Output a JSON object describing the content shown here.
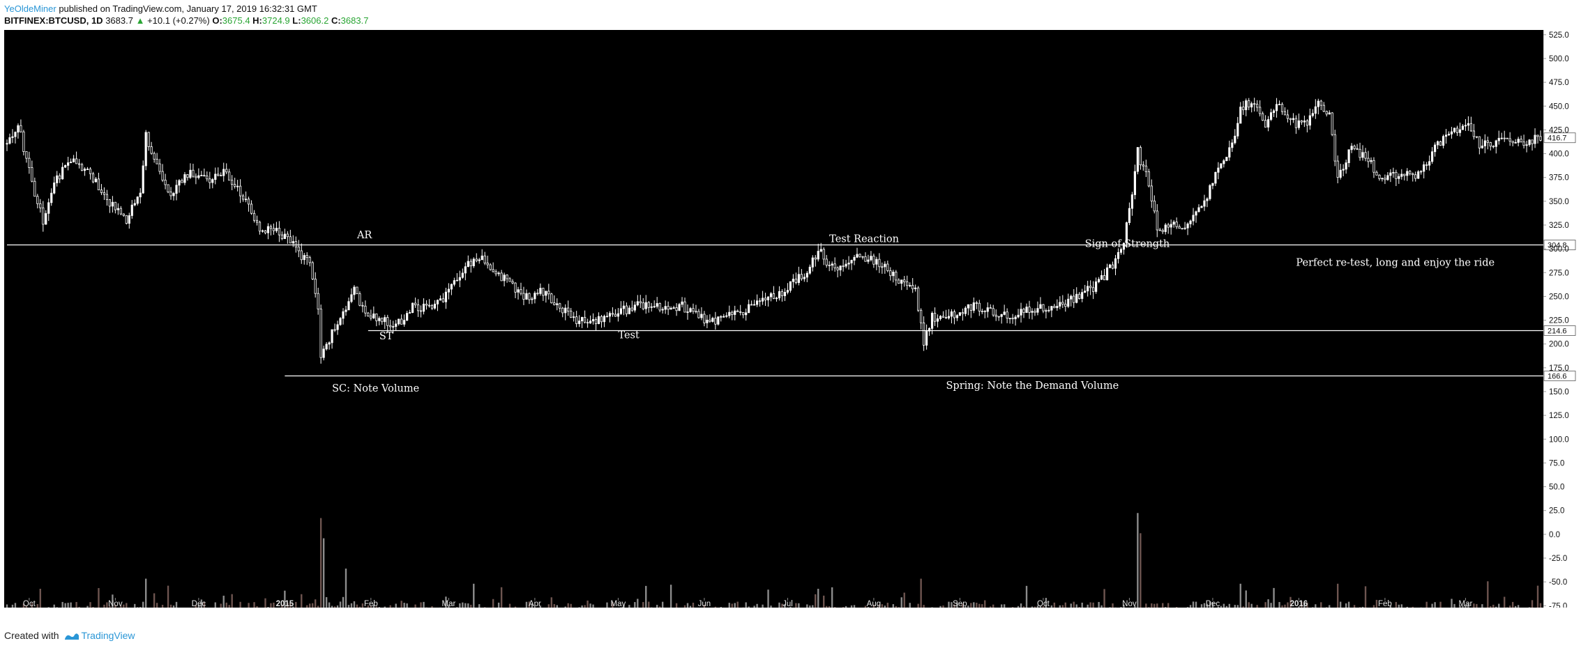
{
  "header": {
    "author": "YeOldeMiner",
    "published_text": "published on TradingView.com, January 17, 2019 16:32:31 GMT",
    "symbol": "BITFINEX:BTCUSD, 1D",
    "last": "3683.7",
    "change_arrow": "▲",
    "change": "+10.1 (+0.27%)",
    "open_label": "O:",
    "open": "3675.4",
    "high_label": "H:",
    "high": "3724.9",
    "low_label": "L:",
    "low": "3606.2",
    "close_label": "C:",
    "close": "3683.7"
  },
  "footer": {
    "created_with": "Created with",
    "brand": "TradingView"
  },
  "chart_data": {
    "type": "candlestick",
    "background": "#000000",
    "candle_color": "#ffffff",
    "grid": false,
    "y_ticks": [
      525.0,
      500.0,
      475.0,
      450.0,
      425.0,
      400.0,
      375.0,
      350.0,
      325.0,
      300.0,
      275.0,
      250.0,
      225.0,
      200.0,
      175.0,
      150.0,
      125.0,
      100.0,
      75.0,
      50.0,
      25.0,
      0.0,
      -25.0,
      -50.0,
      -75.0
    ],
    "y_tick_labels": [
      "525.0",
      "500.0",
      "475.0",
      "450.0",
      "425.0",
      "400.0",
      "375.0",
      "350.0",
      "325.0",
      "300.0",
      "275.0",
      "250.0",
      "225.0",
      "200.0",
      "175.0",
      "150.0",
      "125.0",
      "100.0",
      "75.0",
      "50.0",
      "25.0",
      "0.0",
      "-25.0",
      "-50.0",
      "-75.0"
    ],
    "ylim": [
      -77,
      530
    ],
    "x_range": [
      "2014-09-23",
      "2016-03-28"
    ],
    "x_ticks": [
      {
        "date": "2014-10-01",
        "label": "Oct",
        "bold": false
      },
      {
        "date": "2014-11-01",
        "label": "Nov",
        "bold": false
      },
      {
        "date": "2014-12-01",
        "label": "Dec",
        "bold": false
      },
      {
        "date": "2015-01-01",
        "label": "2015",
        "bold": true
      },
      {
        "date": "2015-02-01",
        "label": "Feb",
        "bold": false
      },
      {
        "date": "2015-03-01",
        "label": "Mar",
        "bold": false
      },
      {
        "date": "2015-04-01",
        "label": "Apr",
        "bold": false
      },
      {
        "date": "2015-05-01",
        "label": "May",
        "bold": false
      },
      {
        "date": "2015-06-01",
        "label": "Jun",
        "bold": false
      },
      {
        "date": "2015-07-01",
        "label": "Jul",
        "bold": false
      },
      {
        "date": "2015-08-01",
        "label": "Aug",
        "bold": false
      },
      {
        "date": "2015-09-01",
        "label": "Sep",
        "bold": false
      },
      {
        "date": "2015-10-01",
        "label": "Oct",
        "bold": false
      },
      {
        "date": "2015-11-01",
        "label": "Nov",
        "bold": false
      },
      {
        "date": "2015-12-01",
        "label": "Dec",
        "bold": false
      },
      {
        "date": "2016-01-01",
        "label": "2016",
        "bold": true
      },
      {
        "date": "2016-02-01",
        "label": "Feb",
        "bold": false
      },
      {
        "date": "2016-03-01",
        "label": "Mar",
        "bold": false
      }
    ],
    "price_anchors": [
      [
        "2014-09-23",
        410
      ],
      [
        "2014-09-27",
        430
      ],
      [
        "2014-10-03",
        360
      ],
      [
        "2014-10-06",
        330
      ],
      [
        "2014-10-10",
        370
      ],
      [
        "2014-10-16",
        395
      ],
      [
        "2014-10-24",
        375
      ],
      [
        "2014-10-31",
        345
      ],
      [
        "2014-11-05",
        330
      ],
      [
        "2014-11-10",
        362
      ],
      [
        "2014-11-12",
        420
      ],
      [
        "2014-11-15",
        395
      ],
      [
        "2014-11-20",
        355
      ],
      [
        "2014-11-28",
        380
      ],
      [
        "2014-12-04",
        372
      ],
      [
        "2014-12-10",
        380
      ],
      [
        "2014-12-18",
        350
      ],
      [
        "2014-12-23",
        320
      ],
      [
        "2014-12-30",
        318
      ],
      [
        "2015-01-04",
        305
      ],
      [
        "2015-01-07",
        290
      ],
      [
        "2015-01-10",
        286
      ],
      [
        "2015-01-13",
        235
      ],
      [
        "2015-01-14",
        185
      ],
      [
        "2015-01-16",
        200
      ],
      [
        "2015-01-22",
        232
      ],
      [
        "2015-01-26",
        262
      ],
      [
        "2015-01-28",
        240
      ],
      [
        "2015-02-03",
        225
      ],
      [
        "2015-02-08",
        222
      ],
      [
        "2015-02-12",
        222
      ],
      [
        "2015-02-16",
        238
      ],
      [
        "2015-02-24",
        240
      ],
      [
        "2015-03-02",
        258
      ],
      [
        "2015-03-10",
        290
      ],
      [
        "2015-03-13",
        292
      ],
      [
        "2015-03-20",
        270
      ],
      [
        "2015-03-28",
        250
      ],
      [
        "2015-04-05",
        255
      ],
      [
        "2015-04-10",
        238
      ],
      [
        "2015-04-16",
        225
      ],
      [
        "2015-04-24",
        226
      ],
      [
        "2015-04-30",
        232
      ],
      [
        "2015-05-08",
        240
      ],
      [
        "2015-05-15",
        240
      ],
      [
        "2015-05-24",
        240
      ],
      [
        "2015-06-01",
        226
      ],
      [
        "2015-06-06",
        225
      ],
      [
        "2015-06-14",
        233
      ],
      [
        "2015-06-20",
        245
      ],
      [
        "2015-06-28",
        252
      ],
      [
        "2015-07-05",
        270
      ],
      [
        "2015-07-09",
        278
      ],
      [
        "2015-07-12",
        302
      ],
      [
        "2015-07-15",
        285
      ],
      [
        "2015-07-20",
        280
      ],
      [
        "2015-07-24",
        290
      ],
      [
        "2015-07-28",
        292
      ],
      [
        "2015-08-05",
        282
      ],
      [
        "2015-08-11",
        265
      ],
      [
        "2015-08-16",
        260
      ],
      [
        "2015-08-18",
        218
      ],
      [
        "2015-08-19",
        200
      ],
      [
        "2015-08-22",
        228
      ],
      [
        "2015-08-27",
        228
      ],
      [
        "2015-09-05",
        240
      ],
      [
        "2015-09-12",
        235
      ],
      [
        "2015-09-20",
        230
      ],
      [
        "2015-09-28",
        237
      ],
      [
        "2015-10-05",
        240
      ],
      [
        "2015-10-13",
        248
      ],
      [
        "2015-10-20",
        262
      ],
      [
        "2015-10-26",
        282
      ],
      [
        "2015-10-30",
        310
      ],
      [
        "2015-11-02",
        360
      ],
      [
        "2015-11-04",
        410
      ],
      [
        "2015-11-05",
        390
      ],
      [
        "2015-11-08",
        370
      ],
      [
        "2015-11-11",
        320
      ],
      [
        "2015-11-15",
        325
      ],
      [
        "2015-11-22",
        322
      ],
      [
        "2015-11-28",
        350
      ],
      [
        "2015-12-04",
        390
      ],
      [
        "2015-12-08",
        410
      ],
      [
        "2015-12-11",
        450
      ],
      [
        "2015-12-16",
        455
      ],
      [
        "2015-12-20",
        430
      ],
      [
        "2015-12-24",
        450
      ],
      [
        "2015-12-31",
        430
      ],
      [
        "2016-01-04",
        432
      ],
      [
        "2016-01-08",
        455
      ],
      [
        "2016-01-12",
        440
      ],
      [
        "2016-01-15",
        375
      ],
      [
        "2016-01-17",
        385
      ],
      [
        "2016-01-20",
        410
      ],
      [
        "2016-01-25",
        395
      ],
      [
        "2016-01-30",
        378
      ],
      [
        "2016-02-06",
        375
      ],
      [
        "2016-02-14",
        380
      ],
      [
        "2016-02-20",
        410
      ],
      [
        "2016-02-26",
        425
      ],
      [
        "2016-03-02",
        430
      ],
      [
        "2016-03-06",
        410
      ],
      [
        "2016-03-10",
        412
      ],
      [
        "2016-03-16",
        414
      ],
      [
        "2016-03-22",
        412
      ],
      [
        "2016-03-28",
        416
      ]
    ],
    "volume_spikes": [
      [
        "2014-10-05",
        25
      ],
      [
        "2014-11-12",
        35
      ],
      [
        "2015-01-14",
        95
      ],
      [
        "2015-01-15",
        75
      ],
      [
        "2015-01-23",
        45
      ],
      [
        "2015-03-10",
        30
      ],
      [
        "2015-07-12",
        25
      ],
      [
        "2015-08-18",
        35
      ],
      [
        "2015-11-04",
        100
      ],
      [
        "2015-11-05",
        80
      ],
      [
        "2015-12-11",
        30
      ],
      [
        "2016-01-15",
        30
      ]
    ],
    "levels": [
      {
        "label": "304.8",
        "value": 304.8,
        "from": "2014-09-23"
      },
      {
        "label": "214.6",
        "value": 214.6,
        "from": "2015-01-31"
      },
      {
        "label": "166.6",
        "value": 166.6,
        "from": "2015-01-01"
      }
    ],
    "last_price_tag": {
      "label": "416.7",
      "value": 416.7
    },
    "annotations": [
      {
        "text": "AR",
        "date": "2015-01-27",
        "value": 311
      },
      {
        "text": "ST",
        "date": "2015-02-04",
        "value": 205
      },
      {
        "text": "SC: Note Volume",
        "date": "2015-01-18",
        "value": 150
      },
      {
        "text": "Test",
        "date": "2015-05-01",
        "value": 206
      },
      {
        "text": "Test Reaction",
        "date": "2015-07-16",
        "value": 307
      },
      {
        "text": "Sign of Strength",
        "date": "2015-10-16",
        "value": 302
      },
      {
        "text": "Spring: Note the Demand Volume",
        "date": "2015-08-27",
        "value": 153
      },
      {
        "text": "Perfect re-test, long and enjoy the ride",
        "date": "2015-12-31",
        "value": 282
      }
    ]
  }
}
